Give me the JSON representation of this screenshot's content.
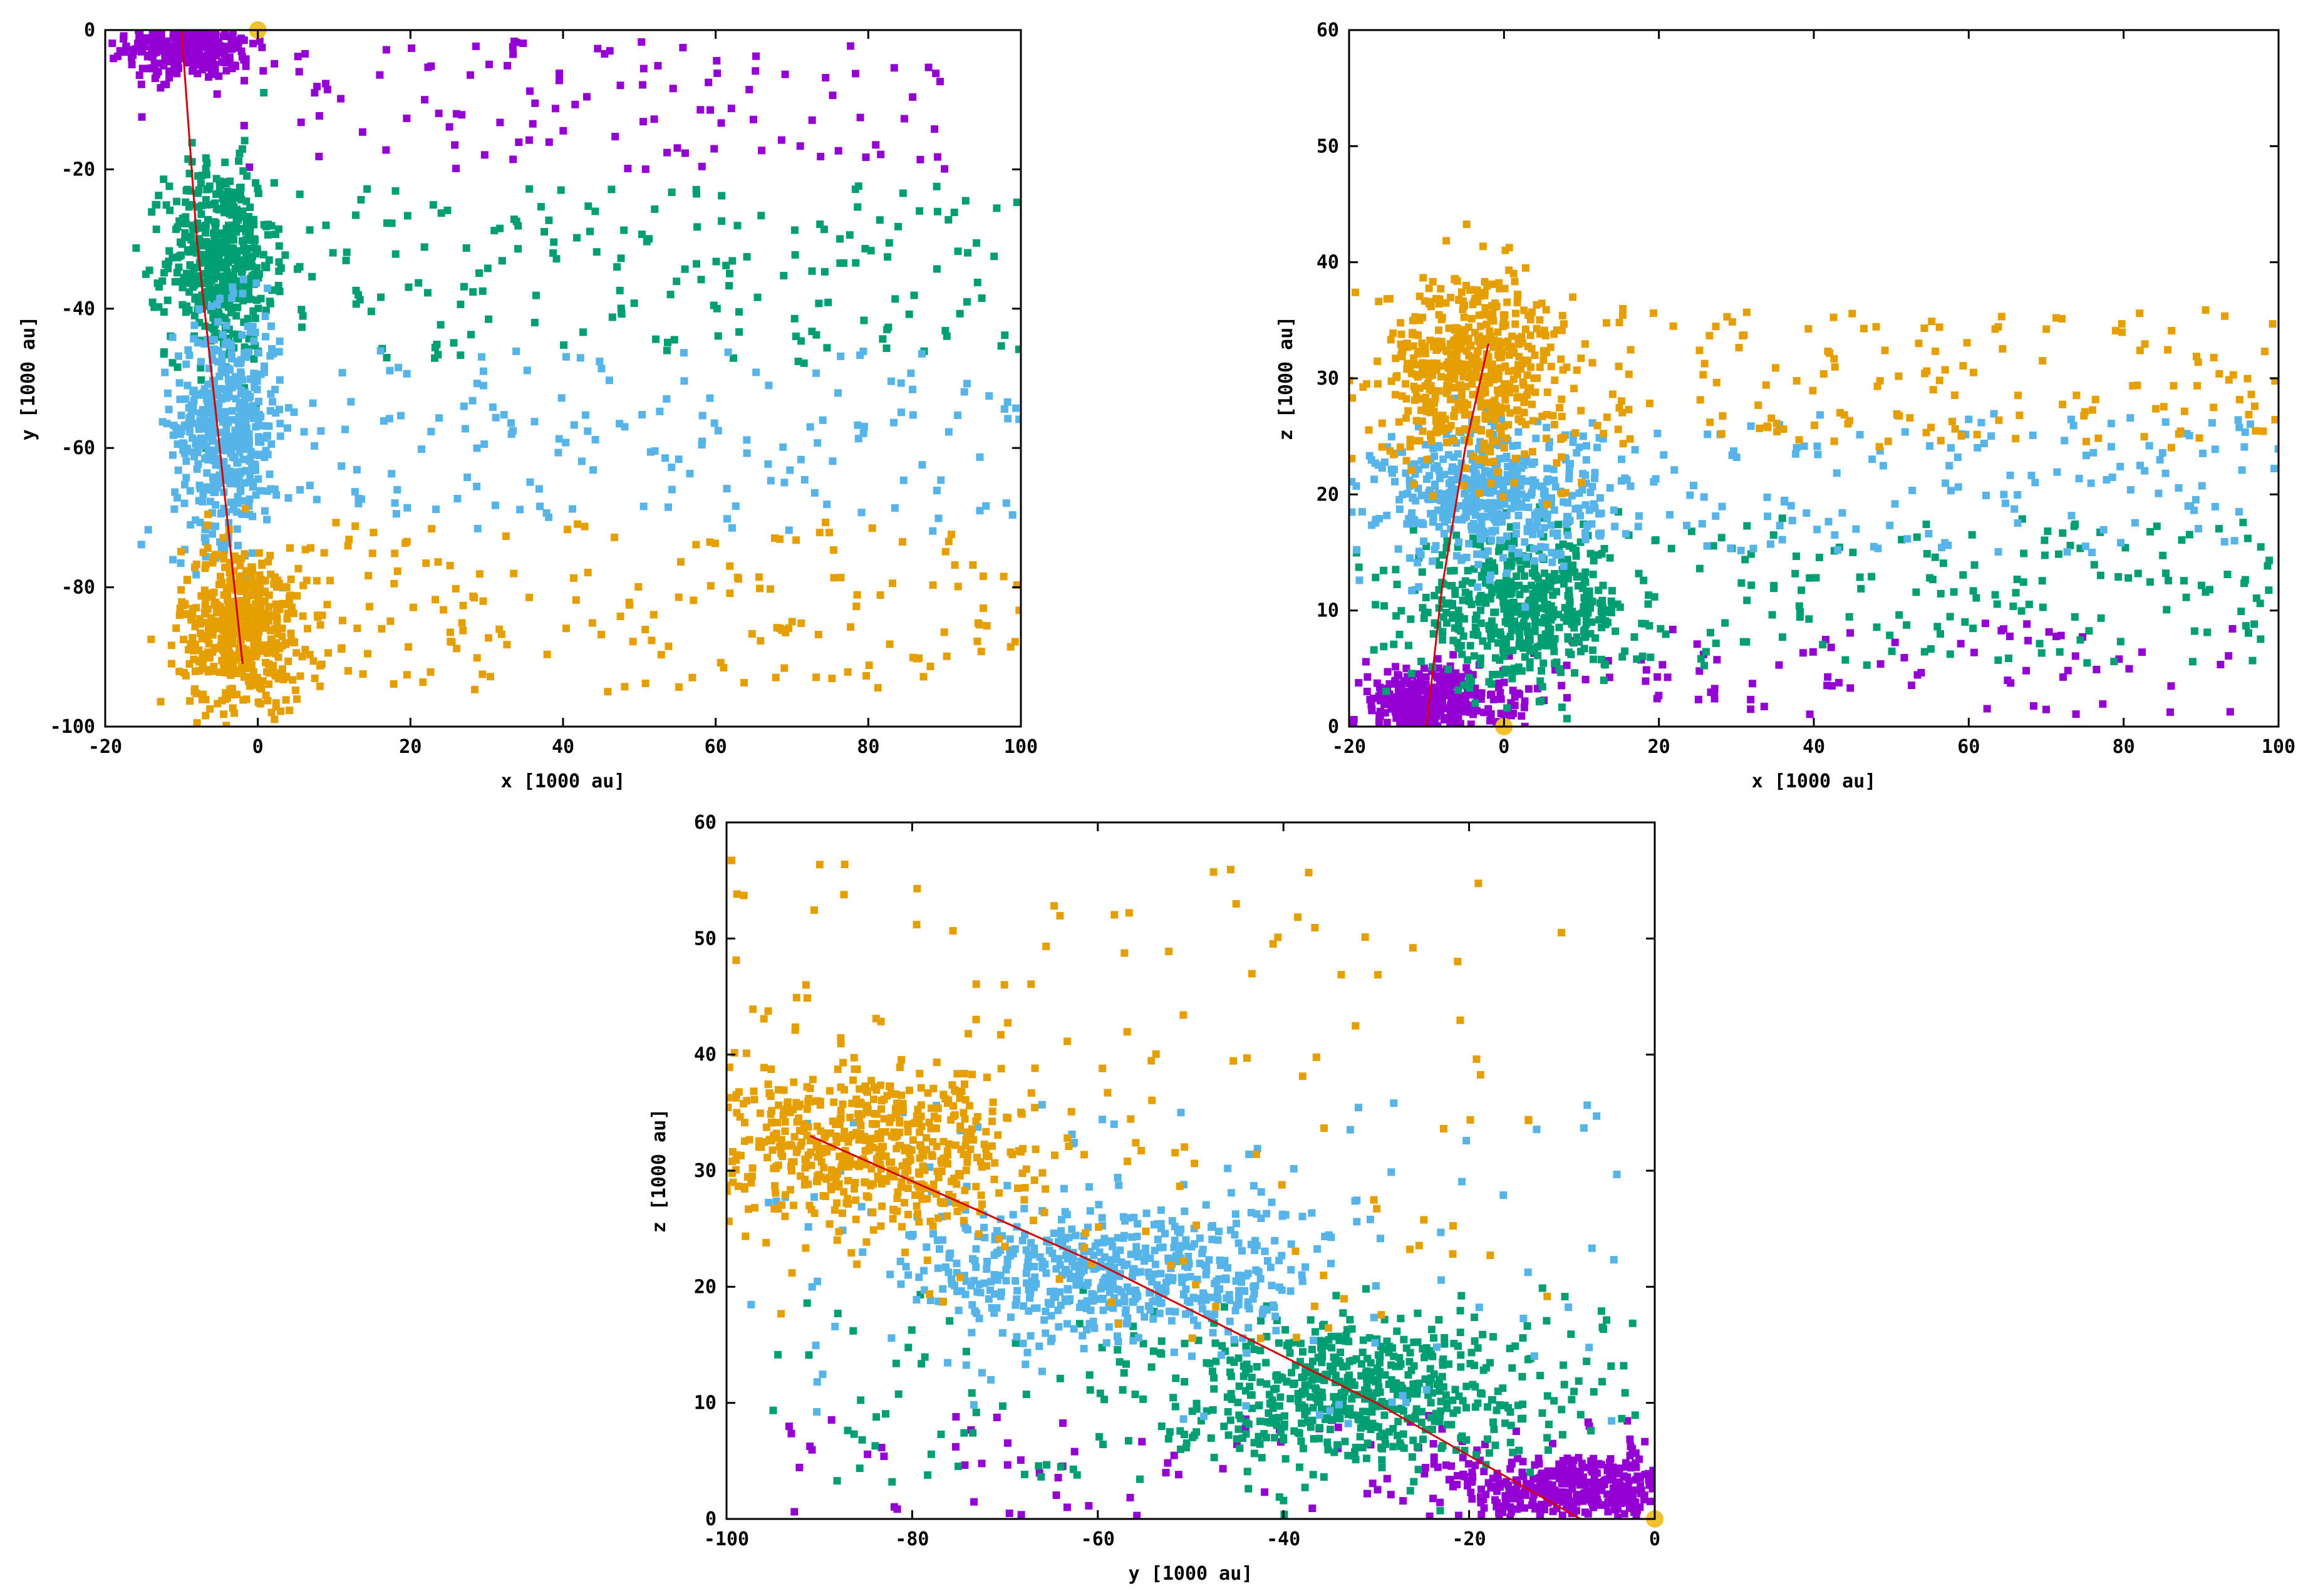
{
  "colors": {
    "purple": "#9400d3",
    "green": "#009e73",
    "blue": "#56b4e9",
    "orange": "#e69f00",
    "track": "#d40000",
    "sun": "#f2c12e"
  },
  "chart_data": [
    {
      "type": "scatter",
      "xlabel": "x [1000 au]",
      "ylabel": "y [1000 au]",
      "xlim": [
        -20,
        100
      ],
      "ylim": [
        -100,
        0
      ],
      "xticks": [
        "-20",
        "0",
        "20",
        "40",
        "60",
        "80",
        "100"
      ],
      "yticks": [
        "-100",
        "-80",
        "-60",
        "-40",
        "-20",
        "0"
      ],
      "xtick_values": [
        -20,
        0,
        20,
        40,
        60,
        80,
        100
      ],
      "ytick_values": [
        -100,
        -80,
        -60,
        -40,
        -20,
        0
      ],
      "track": [
        [
          -10,
          0
        ],
        [
          -8,
          -30
        ],
        [
          -5,
          -60
        ],
        [
          -2,
          -91
        ]
      ],
      "sun": [
        0,
        0
      ],
      "series": [
        {
          "color": "purple",
          "core": {
            "cx": -9,
            "cy": -2,
            "sx": 4,
            "sy": 2.5,
            "n": 400
          },
          "tail": {
            "x0": -3,
            "x1": 90,
            "y0": -20,
            "y1": -1,
            "n": 110
          }
        },
        {
          "color": "green",
          "core": {
            "cx": -5,
            "cy": -33,
            "sx": 3.5,
            "sy": 7,
            "n": 500
          },
          "tail": {
            "x0": 5,
            "x1": 100,
            "y0": -48,
            "y1": -22,
            "n": 180
          }
        },
        {
          "color": "blue",
          "core": {
            "cx": -4,
            "cy": -57,
            "sx": 3.5,
            "sy": 8,
            "n": 500
          },
          "tail": {
            "x0": 5,
            "x1": 100,
            "y0": -72,
            "y1": -46,
            "n": 160
          }
        },
        {
          "color": "orange",
          "core": {
            "cx": -2,
            "cy": -86,
            "sx": 4,
            "sy": 6,
            "n": 550
          },
          "tail": {
            "x0": 5,
            "x1": 100,
            "y0": -95,
            "y1": -70,
            "n": 170
          }
        }
      ]
    },
    {
      "type": "scatter",
      "xlabel": "x [1000 au]",
      "ylabel": "z [1000 au]",
      "xlim": [
        -20,
        100
      ],
      "ylim": [
        0,
        60
      ],
      "xticks": [
        "-20",
        "0",
        "20",
        "40",
        "60",
        "80",
        "100"
      ],
      "yticks": [
        "0",
        "10",
        "20",
        "30",
        "40",
        "50",
        "60"
      ],
      "xtick_values": [
        -20,
        0,
        20,
        40,
        60,
        80,
        100
      ],
      "ytick_values": [
        0,
        10,
        20,
        30,
        40,
        50,
        60
      ],
      "track": [
        [
          -10,
          0
        ],
        [
          -8,
          12
        ],
        [
          -5,
          24
        ],
        [
          -2,
          33
        ]
      ],
      "sun": [
        0,
        0
      ],
      "series": [
        {
          "color": "purple",
          "core": {
            "cx": -10,
            "cy": 2,
            "sx": 5,
            "sy": 1.5,
            "n": 400
          },
          "tail": {
            "x0": 0,
            "x1": 95,
            "y0": 1,
            "y1": 9,
            "n": 90
          }
        },
        {
          "color": "green",
          "core": {
            "cx": 2,
            "cy": 10,
            "sx": 7,
            "sy": 3,
            "n": 500
          },
          "tail": {
            "x0": 10,
            "x1": 100,
            "y0": 5,
            "y1": 18,
            "n": 170
          }
        },
        {
          "color": "blue",
          "core": {
            "cx": -2,
            "cy": 20,
            "sx": 7,
            "sy": 3,
            "n": 500
          },
          "tail": {
            "x0": 10,
            "x1": 100,
            "y0": 15,
            "y1": 27,
            "n": 160
          }
        },
        {
          "color": "orange",
          "core": {
            "cx": -4,
            "cy": 31,
            "sx": 6,
            "sy": 4,
            "n": 550
          },
          "tail": {
            "x0": 5,
            "x1": 100,
            "y0": 24,
            "y1": 36,
            "n": 170
          }
        }
      ]
    },
    {
      "type": "scatter",
      "xlabel": "y [1000 au]",
      "ylabel": "z [1000 au]",
      "xlim": [
        -100,
        0
      ],
      "ylim": [
        0,
        60
      ],
      "xticks": [
        "-100",
        "-80",
        "-60",
        "-40",
        "-20",
        "0"
      ],
      "yticks": [
        "0",
        "10",
        "20",
        "30",
        "40",
        "50",
        "60"
      ],
      "xtick_values": [
        -100,
        -80,
        -60,
        -40,
        -20,
        0
      ],
      "ytick_values": [
        0,
        10,
        20,
        30,
        40,
        50,
        60
      ],
      "track": [
        [
          -91,
          33
        ],
        [
          -60,
          22
        ],
        [
          -30,
          10
        ],
        [
          -8,
          0
        ]
      ],
      "sun": [
        0,
        0
      ],
      "series": [
        {
          "color": "purple",
          "core": {
            "cx": -8,
            "cy": 2.5,
            "sx": 7,
            "sy": 1.8,
            "n": 450
          },
          "tail": {
            "x0": -95,
            "x1": -2,
            "y0": 0,
            "y1": 9,
            "n": 70
          }
        },
        {
          "color": "green",
          "core": {
            "cx": -33,
            "cy": 11,
            "sx": 10,
            "sy": 3,
            "n": 550
          },
          "tail": {
            "x0": -95,
            "x1": -2,
            "y0": 3,
            "y1": 20,
            "n": 130
          }
        },
        {
          "color": "blue",
          "core": {
            "cx": -58,
            "cy": 21,
            "sx": 11,
            "sy": 3,
            "n": 550
          },
          "tail": {
            "x0": -98,
            "x1": -2,
            "y0": 8,
            "y1": 36,
            "n": 110
          }
        },
        {
          "color": "orange",
          "core": {
            "cx": -85,
            "cy": 32,
            "sx": 9,
            "sy": 3.5,
            "n": 600
          },
          "tail": {
            "x0": -100,
            "x1": -10,
            "y0": 15,
            "y1": 57,
            "n": 130
          }
        }
      ]
    }
  ]
}
